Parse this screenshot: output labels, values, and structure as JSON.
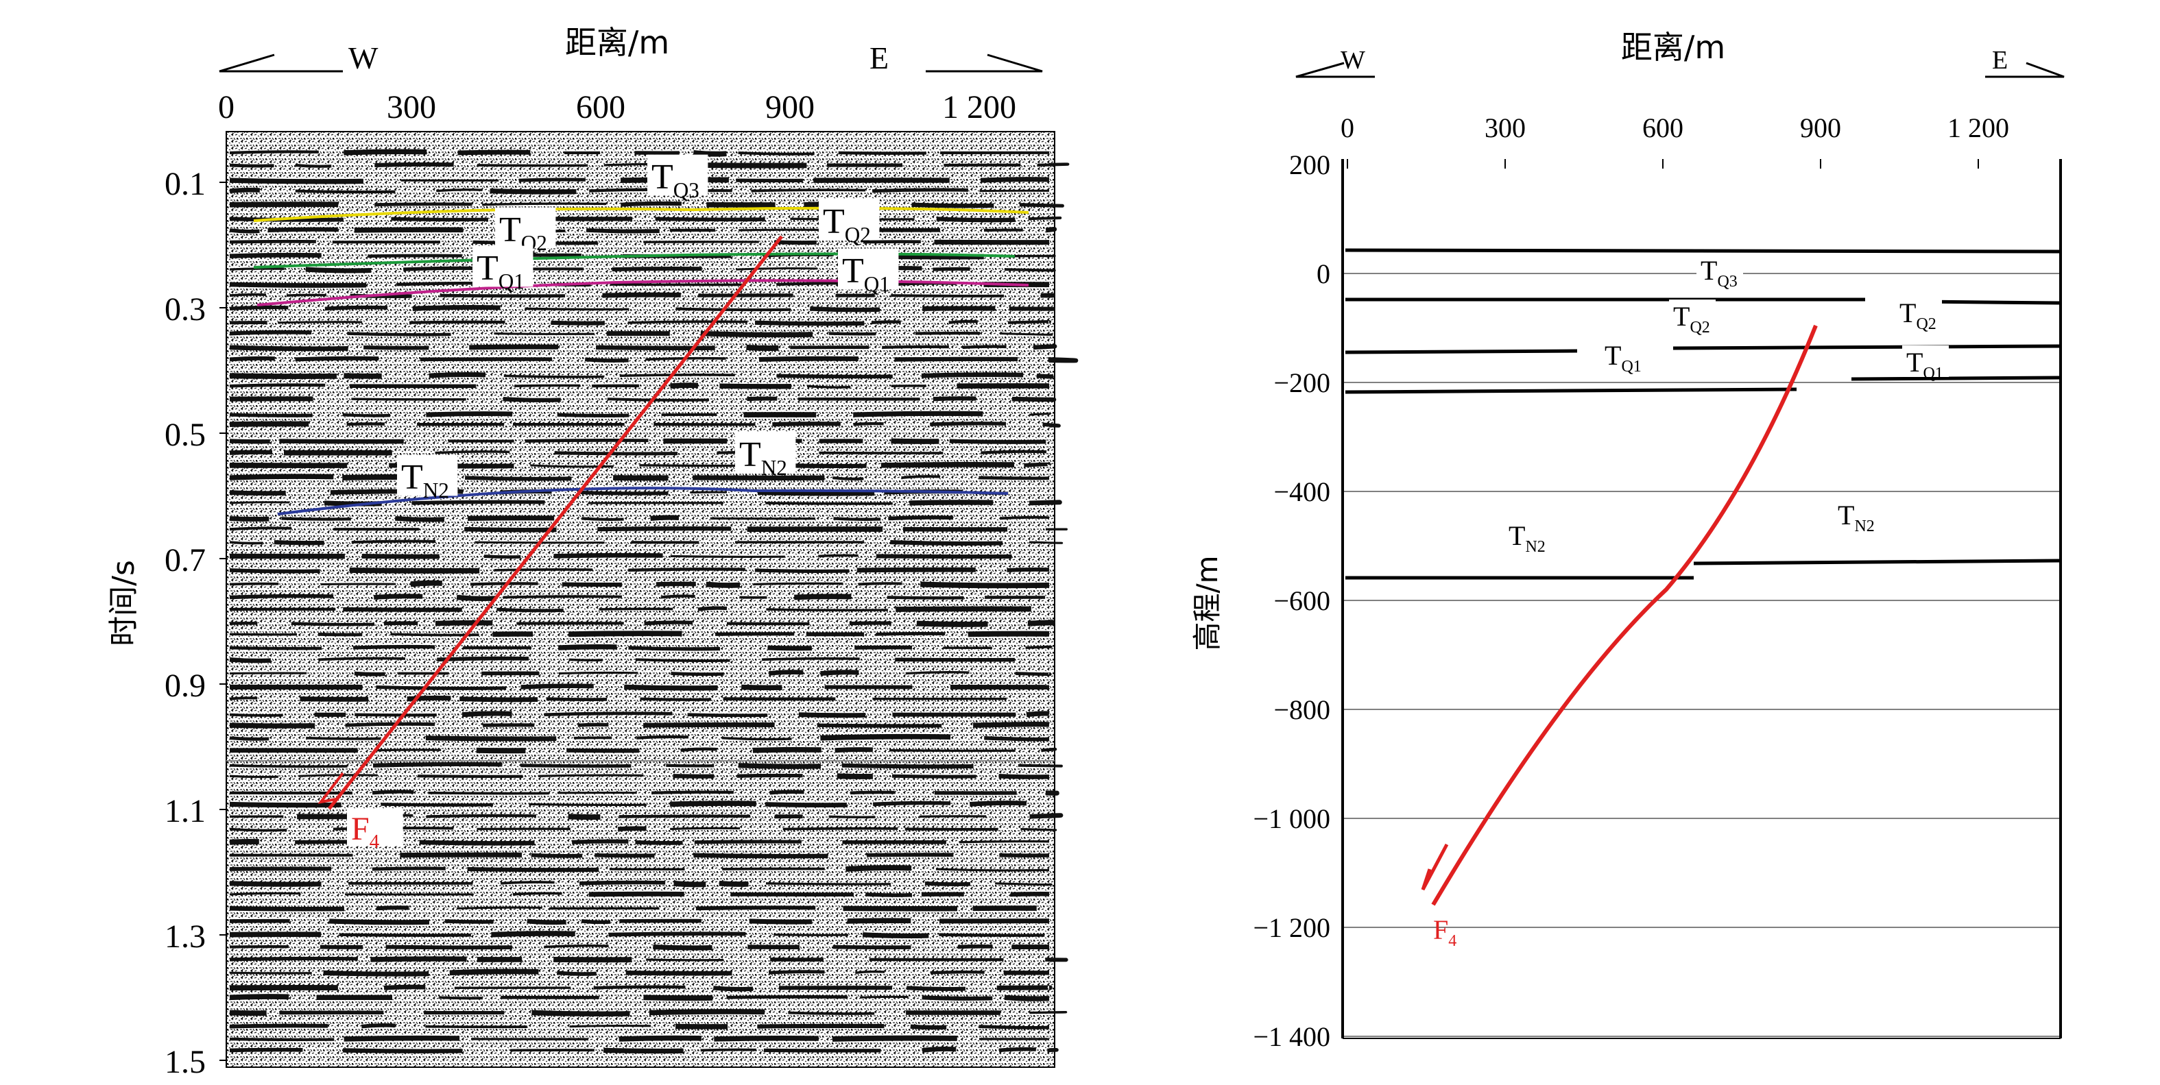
{
  "left_panel": {
    "x_axis_title": "距离/m",
    "y_axis_title": "时间/s",
    "dir_west": "W",
    "dir_east": "E",
    "x_ticks": [
      "0",
      "300",
      "600",
      "900",
      "1 200"
    ],
    "y_ticks": [
      "0.1",
      "0.3",
      "0.5",
      "0.7",
      "0.9",
      "1.1",
      "1.3",
      "1.5"
    ],
    "horizons": [
      {
        "name": "TQ3",
        "label_main": "T",
        "label_sub": "Q3",
        "color": "#e8d800"
      },
      {
        "name": "TQ2",
        "label_main": "T",
        "label_sub": "Q2",
        "color": "#1a9a3a"
      },
      {
        "name": "TQ1",
        "label_main": "T",
        "label_sub": "Q1",
        "color": "#c0208a"
      },
      {
        "name": "TN2",
        "label_main": "T",
        "label_sub": "N2",
        "color": "#2a3a9a"
      }
    ],
    "fault": {
      "label_main": "F",
      "label_sub": "4",
      "color": "#e02020"
    }
  },
  "right_panel": {
    "x_axis_title": "距离/m",
    "y_axis_title": "高程/m",
    "dir_west": "W",
    "dir_east": "E",
    "x_ticks": [
      "0",
      "300",
      "600",
      "900",
      "1 200"
    ],
    "y_ticks": [
      "200",
      "0",
      "−200",
      "−400",
      "−600",
      "−800",
      "−1 000",
      "−1 200",
      "−1 400"
    ],
    "horizons": [
      {
        "name": "TQ3",
        "label_main": "T",
        "label_sub": "Q3"
      },
      {
        "name": "TQ2",
        "label_main": "T",
        "label_sub": "Q2"
      },
      {
        "name": "TQ1",
        "label_main": "T",
        "label_sub": "Q1"
      },
      {
        "name": "TN2",
        "label_main": "T",
        "label_sub": "N2"
      }
    ],
    "fault": {
      "label_main": "F",
      "label_sub": "4",
      "color": "#e02020"
    }
  }
}
